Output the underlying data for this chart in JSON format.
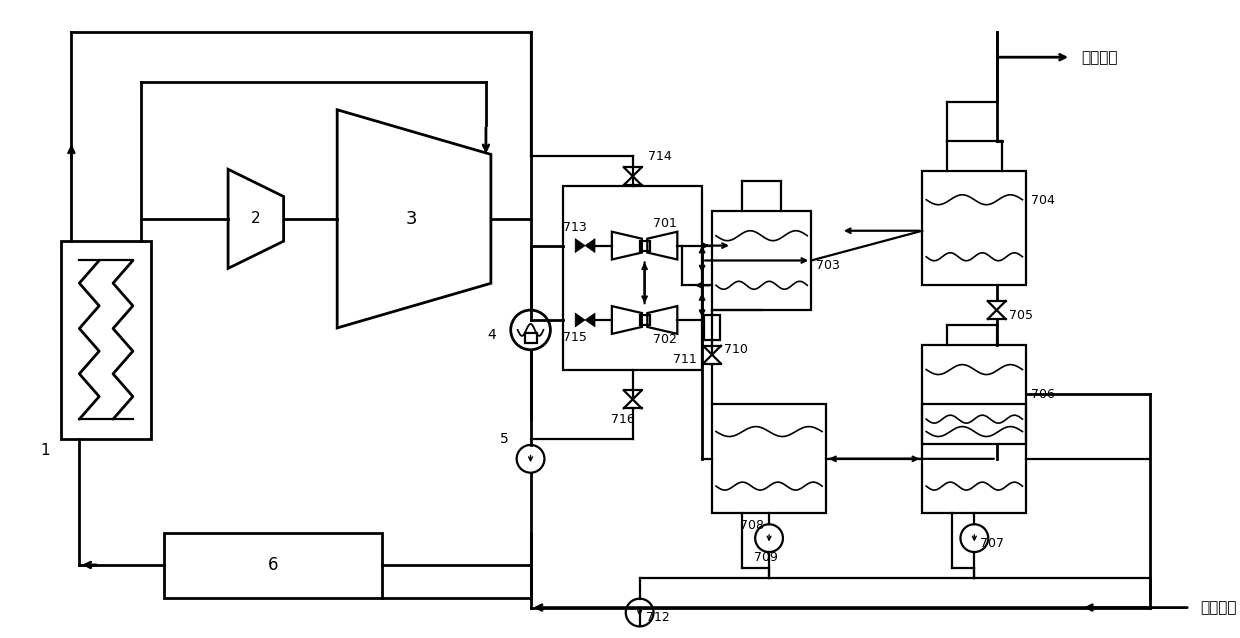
{
  "bg": "#ffffff",
  "lc": "#000000",
  "lw": 1.6,
  "lw2": 2.0,
  "chinese_out": "热网水出",
  "chinese_in": "热网水进"
}
